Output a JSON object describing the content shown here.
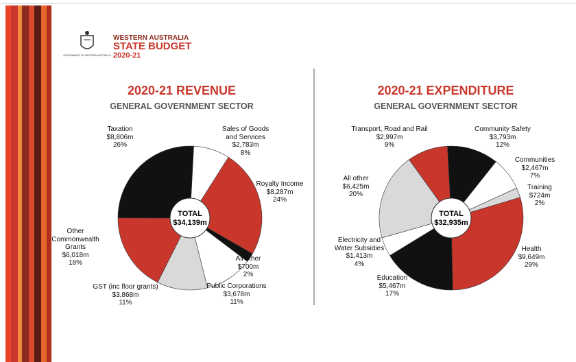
{
  "header": {
    "crest_text": "GOVERNMENT OF WESTERN AUSTRALIA",
    "line1": "WESTERN AUSTRALIA",
    "line2": "STATE BUDGET",
    "line3": "2020-21"
  },
  "chart_data": [
    {
      "type": "pie",
      "title": "2020-21 REVENUE",
      "subtitle": "GENERAL GOVERNMENT SECTOR",
      "center_label": "TOTAL",
      "total": 34139,
      "total_label": "$34,139m",
      "categories": [
        "Sales of Goods and Services",
        "Royalty Income",
        "All other",
        "Public Corporations",
        "GST (inc floor grants)",
        "Other Commonwealth Grants",
        "Taxation"
      ],
      "values": [
        2783,
        8287,
        700,
        3678,
        3868,
        6018,
        8806
      ],
      "value_labels": [
        "$2,783m",
        "$8,287m",
        "$700m",
        "$3,678m",
        "$3,868m",
        "$6,018m",
        "$8,806m"
      ],
      "percents": [
        8,
        24,
        2,
        11,
        11,
        18,
        26
      ],
      "percent_labels": [
        "8%",
        "24%",
        "2%",
        "11%",
        "11%",
        "18%",
        "26%"
      ],
      "colors": [
        "#ffffff",
        "#c9372c",
        "#111111",
        "#ffffff",
        "#d9d9d9",
        "#c9372c",
        "#111111"
      ]
    },
    {
      "type": "pie",
      "title": "2020-21 EXPENDITURE",
      "subtitle": "GENERAL GOVERNMENT SECTOR",
      "center_label": "TOTAL",
      "total": 32935,
      "total_label": "$32,935m",
      "categories": [
        "Community Safety",
        "Communities",
        "Training",
        "Health",
        "Education",
        "Electricity and Water Subsidies",
        "All other",
        "Transport, Road and Rail"
      ],
      "values": [
        3793,
        2467,
        724,
        9649,
        5467,
        1413,
        6425,
        2997
      ],
      "value_labels": [
        "$3,793m",
        "$2,467m",
        "$724m",
        "$9,649m",
        "$5,467m",
        "$1,413m",
        "$6,425m",
        "$2,997m"
      ],
      "percents": [
        12,
        7,
        2,
        29,
        17,
        4,
        20,
        9
      ],
      "percent_labels": [
        "12%",
        "7%",
        "2%",
        "29%",
        "17%",
        "4%",
        "20%",
        "9%"
      ],
      "colors": [
        "#111111",
        "#ffffff",
        "#d9d9d9",
        "#c9372c",
        "#111111",
        "#ffffff",
        "#d9d9d9",
        "#c9372c"
      ]
    }
  ]
}
